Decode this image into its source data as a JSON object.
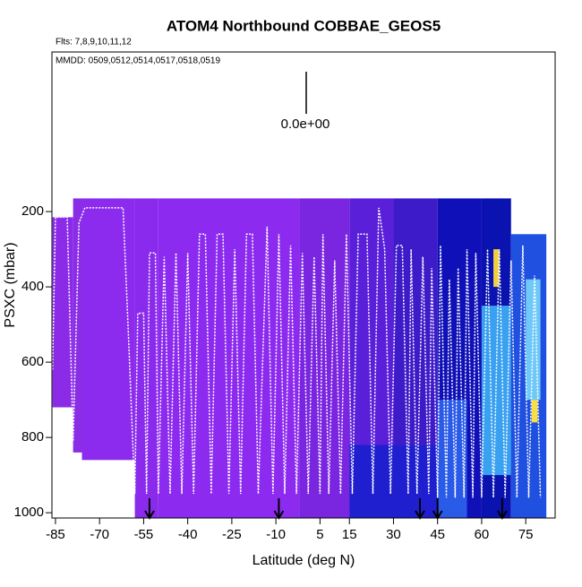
{
  "chart_data": {
    "type": "curtain",
    "title": "ATOM4 Northbound COBBAE_GEOS5",
    "flights_note": "Flts: 7,8,9,10,11,12",
    "dates_note": "MMDD: 0509,0512,0514,0517,0518,0519",
    "scale_label": "0.0e+00",
    "xlabel": "Latitude (deg N)",
    "ylabel": "PSXC (mbar)",
    "xlim": [
      -86.2,
      85
    ],
    "ylim": [
      1014,
      -224
    ],
    "xticks": [
      -85,
      -70,
      -55,
      -40,
      -25,
      -10,
      5,
      15,
      30,
      45,
      60,
      75
    ],
    "yticks": [
      200,
      400,
      600,
      800,
      1000
    ],
    "curtain": [
      {
        "x": [
          -86,
          -79
        ],
        "y": [
          215,
          720
        ],
        "color": "#8b2be8"
      },
      {
        "x": [
          -79,
          -76
        ],
        "y": [
          165,
          840
        ],
        "color": "#8a2ee6"
      },
      {
        "x": [
          -76,
          -58
        ],
        "y": [
          165,
          860
        ],
        "color": "#8c2bee"
      },
      {
        "x": [
          -58,
          -50
        ],
        "y": [
          165,
          1014
        ],
        "color": "#8a2aec"
      },
      {
        "x": [
          -50,
          -2
        ],
        "y": [
          165,
          1014
        ],
        "color": "#8c2bef"
      },
      {
        "x": [
          -2,
          15
        ],
        "y": [
          165,
          1014
        ],
        "color": "#7a25e0"
      },
      {
        "x": [
          15,
          30
        ],
        "y": [
          165,
          1014
        ],
        "color": "#5a1fd8"
      },
      {
        "x": [
          30,
          45
        ],
        "y": [
          165,
          820
        ],
        "color": "#3d1bc8"
      },
      {
        "x": [
          15,
          45
        ],
        "y": [
          820,
          1014
        ],
        "color": "#1f1fd0"
      },
      {
        "x": [
          45,
          60
        ],
        "y": [
          165,
          1014
        ],
        "color": "#1010b8"
      },
      {
        "x": [
          45,
          55
        ],
        "y": [
          700,
          1014
        ],
        "color": "#2a5ae8"
      },
      {
        "x": [
          60,
          70
        ],
        "y": [
          165,
          1014
        ],
        "color": "#0a12b0"
      },
      {
        "x": [
          60,
          70
        ],
        "y": [
          450,
          900
        ],
        "color": "#3aa0f0"
      },
      {
        "x": [
          70,
          82
        ],
        "y": [
          260,
          1014
        ],
        "color": "#2050e0"
      },
      {
        "x": [
          75,
          80
        ],
        "y": [
          380,
          700
        ],
        "color": "#6ec8f8"
      },
      {
        "x": [
          64,
          66
        ],
        "y": [
          300,
          400
        ],
        "color": "#f0d040"
      },
      {
        "x": [
          77,
          79
        ],
        "y": [
          700,
          760
        ],
        "color": "#f8e040"
      }
    ],
    "track": {
      "color": "#ffffff",
      "x": [
        -86,
        -85,
        -81,
        -79,
        -77,
        -75,
        -62,
        -60,
        -58,
        -57,
        -55,
        -54,
        -53,
        -51,
        -50,
        -48,
        -46,
        -44,
        -42,
        -40,
        -38,
        -36,
        -34,
        -32,
        -30,
        -28,
        -26,
        -24,
        -22,
        -20,
        -18,
        -16,
        -13,
        -11,
        -9,
        -7,
        -5,
        -3,
        -1,
        1,
        3,
        5,
        6,
        8,
        10,
        12,
        14,
        16,
        18,
        21,
        23,
        25,
        27,
        29,
        31,
        33,
        35,
        36,
        38,
        40,
        42,
        43,
        45,
        46,
        48,
        49,
        51,
        52,
        54,
        55,
        57,
        58,
        60,
        62,
        64,
        66,
        68,
        70,
        72,
        74,
        76,
        78,
        80
      ],
      "y": [
        620,
        215,
        215,
        810,
        230,
        190,
        190,
        560,
        950,
        470,
        470,
        950,
        310,
        310,
        950,
        320,
        950,
        310,
        950,
        310,
        950,
        260,
        260,
        950,
        260,
        260,
        950,
        300,
        950,
        260,
        260,
        950,
        240,
        950,
        260,
        950,
        290,
        950,
        310,
        950,
        320,
        950,
        260,
        950,
        330,
        950,
        260,
        950,
        260,
        260,
        950,
        190,
        300,
        950,
        290,
        290,
        950,
        300,
        950,
        320,
        950,
        350,
        960,
        290,
        960,
        380,
        960,
        350,
        960,
        300,
        960,
        310,
        960,
        300,
        960,
        300,
        960,
        330,
        960,
        290,
        960,
        370,
        960
      ]
    },
    "arrows": [
      -53,
      -9,
      39,
      45,
      67
    ]
  }
}
